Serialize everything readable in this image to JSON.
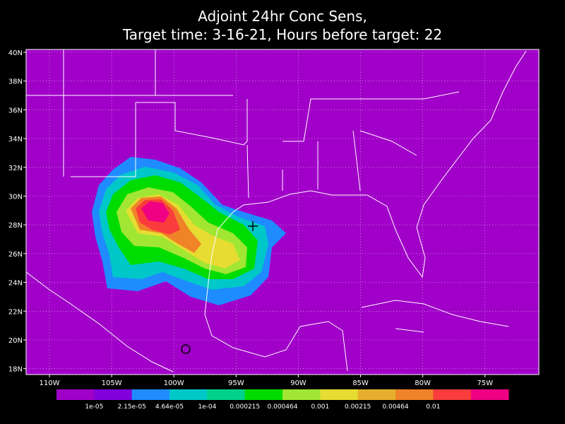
{
  "title": {
    "line1": "Adjoint 24hr Conc Sens,",
    "line2": "Target time: 3-16-21, Hours before target: 22"
  },
  "lat_labels": [
    "40N",
    "38N",
    "36N",
    "34N",
    "32N",
    "30N",
    "28N",
    "26N",
    "24N",
    "22N",
    "20N",
    "18N"
  ],
  "lon_labels": [
    "110W",
    "105W",
    "100W",
    "95W",
    "90W",
    "85W",
    "80W",
    "75W"
  ],
  "colorbar": {
    "colors": [
      "#a000c8",
      "#8200dc",
      "#1e8cff",
      "#00c8c8",
      "#00d28c",
      "#00dc00",
      "#a0e632",
      "#e6dc32",
      "#e6af2d",
      "#f08228",
      "#fa3c3c",
      "#f00082"
    ],
    "labels": [
      "1e-05",
      "2.15e-05",
      "4.64e-05",
      "1e-04",
      "0.000215",
      "0.000464",
      "0.001",
      "0.00215",
      "0.00464",
      "0.01"
    ]
  }
}
